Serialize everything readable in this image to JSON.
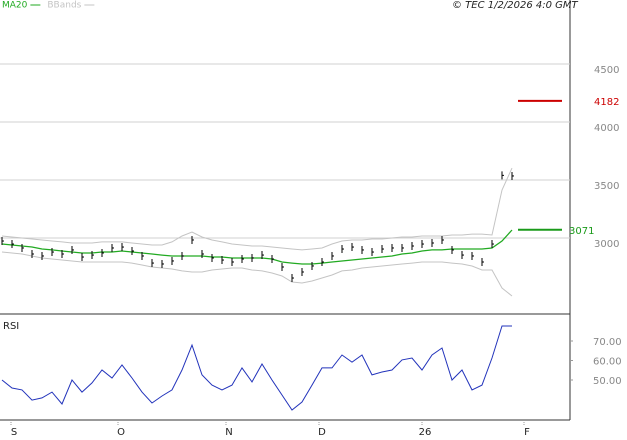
{
  "chart_data": [
    {
      "type": "price",
      "header": "© TEC 1/2/2026 4:0 GMT",
      "categories": [
        null,
        null,
        null,
        null,
        null,
        null,
        null,
        null,
        null,
        null,
        null,
        null,
        null,
        null,
        null,
        null,
        null,
        null,
        null,
        null,
        null,
        null,
        null,
        null,
        null,
        null,
        null,
        null,
        null,
        null,
        null,
        null,
        null,
        null,
        null,
        null,
        null,
        null,
        null,
        null,
        null,
        null,
        null,
        null,
        null,
        null,
        null,
        null,
        null,
        null,
        null,
        null
      ],
      "values": [
        2974,
        2948,
        2914,
        2862,
        2845,
        2879,
        2862,
        2897,
        2836,
        2853,
        2871,
        2914,
        2922,
        2888,
        2845,
        2784,
        2776,
        2802,
        2845,
        2983,
        2862,
        2828,
        2810,
        2793,
        2819,
        2828,
        2853,
        2819,
        2750,
        2655,
        2707,
        2759,
        2793,
        2845,
        2905,
        2922,
        2897,
        2879,
        2905,
        2914,
        2914,
        2931,
        2948,
        2957,
        2983,
        2897,
        2853,
        2845,
        2793,
        2948,
        3540,
        3535
      ],
      "color": "#000000",
      "series": [
        {
          "name": "MA20",
          "color": "#22aa22",
          "values": [
            2948,
            2940,
            2931,
            2922,
            2905,
            2897,
            2888,
            2879,
            2871,
            2871,
            2879,
            2879,
            2888,
            2879,
            2871,
            2862,
            2853,
            2845,
            2845,
            2845,
            2845,
            2836,
            2836,
            2828,
            2828,
            2828,
            2828,
            2819,
            2793,
            2784,
            2776,
            2776,
            2784,
            2793,
            2802,
            2810,
            2819,
            2828,
            2836,
            2845,
            2862,
            2871,
            2888,
            2897,
            2897,
            2905,
            2905,
            2905,
            2905,
            2914,
            2974,
            3069
          ]
        },
        {
          "name": "BBands",
          "color": "#c4c4c4",
          "upper": [
            3017,
            3009,
            3000,
            2991,
            2983,
            2974,
            2966,
            2957,
            2957,
            2957,
            2966,
            2966,
            2966,
            2957,
            2948,
            2940,
            2940,
            2966,
            3017,
            3052,
            3009,
            2983,
            2966,
            2948,
            2940,
            2931,
            2931,
            2922,
            2914,
            2905,
            2897,
            2905,
            2914,
            2948,
            2974,
            2983,
            2983,
            2991,
            2991,
            3000,
            3009,
            3009,
            3017,
            3017,
            3017,
            3026,
            3026,
            3034,
            3034,
            3026,
            3414,
            3603
          ],
          "lower": [
            2879,
            2871,
            2862,
            2845,
            2828,
            2819,
            2810,
            2802,
            2793,
            2793,
            2793,
            2793,
            2793,
            2784,
            2767,
            2750,
            2741,
            2733,
            2716,
            2707,
            2707,
            2724,
            2733,
            2741,
            2741,
            2724,
            2716,
            2698,
            2672,
            2621,
            2612,
            2629,
            2655,
            2681,
            2716,
            2724,
            2741,
            2750,
            2759,
            2767,
            2776,
            2784,
            2793,
            2793,
            2793,
            2784,
            2776,
            2759,
            2724,
            2724,
            2569,
            2500
          ]
        }
      ],
      "levels": [
        {
          "value": 4182,
          "label": "4182",
          "color": "#cc0000"
        },
        {
          "value": 3071,
          "label": "3071",
          "color": "#1a9a1a"
        }
      ],
      "xlim": [
        -0.2,
        56.8
      ],
      "ylim": [
        2362,
        5052
      ],
      "yticks": [
        3000,
        3500,
        4000,
        4500
      ],
      "grid": true
    },
    {
      "type": "line",
      "title": "RSI",
      "categories": [
        null,
        null,
        null,
        null,
        null,
        null,
        null,
        null,
        null,
        null,
        null,
        null,
        null,
        null,
        null,
        null,
        null,
        null,
        null,
        null,
        null,
        null,
        null,
        null,
        null,
        null,
        null,
        null,
        null,
        null,
        null,
        null,
        null,
        null,
        null,
        null,
        null,
        null,
        null,
        null,
        null,
        null,
        null,
        null,
        null,
        null,
        null,
        null,
        null,
        null,
        null,
        null
      ],
      "values": [
        50,
        45.9,
        44.9,
        39.7,
        40.8,
        43.8,
        37.7,
        50,
        43.8,
        48.5,
        55.1,
        51,
        57.7,
        51,
        43.8,
        38.2,
        41.8,
        44.9,
        55.1,
        67.9,
        52.6,
        47.4,
        44.9,
        47.4,
        56.2,
        49,
        58.2,
        50,
        42.3,
        34.6,
        38.7,
        47.4,
        56.2,
        56.2,
        62.8,
        59.2,
        62.8,
        52.6,
        54.1,
        55.1,
        60.3,
        61.3,
        55.1,
        62.8,
        66.4,
        50,
        55.1,
        44.9,
        47.4,
        61.3,
        77.7,
        77.7
      ],
      "color": "#2233bb",
      "xlim": [
        -0.2,
        56.8
      ],
      "xticks": [
        {
          "value": 1.2,
          "label": "S"
        },
        {
          "value": 11.9,
          "label": "O"
        },
        {
          "value": 22.7,
          "label": "N"
        },
        {
          "value": 32,
          "label": "D"
        },
        {
          "value": 42.3,
          "label": "26"
        },
        {
          "value": 52.5,
          "label": "F"
        }
      ],
      "ylim": [
        30.5,
        81.8
      ],
      "yticks": [
        {
          "value": 70,
          "label": "70.00"
        },
        {
          "value": 60,
          "label": "60.00"
        },
        {
          "value": 50,
          "label": "50.00"
        }
      ]
    }
  ]
}
